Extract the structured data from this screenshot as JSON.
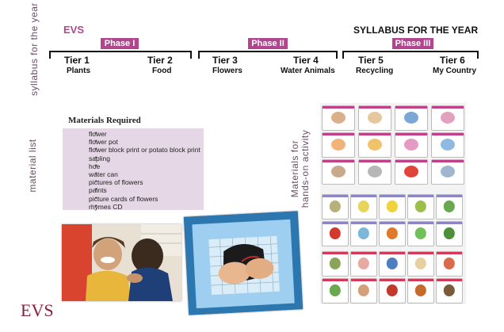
{
  "side_labels": {
    "syllabus": "syllabus for the year",
    "material": "material list",
    "hands_on": "Materials for\nhands-on activity"
  },
  "header": {
    "subject": "EVS",
    "title": "SYLLABUS FOR THE YEAR"
  },
  "phases": [
    "Phase I",
    "Phase II",
    "Phase III"
  ],
  "tiers": [
    {
      "name": "Tier 1",
      "topic": "Plants"
    },
    {
      "name": "Tier 2",
      "topic": "Food"
    },
    {
      "name": "Tier 3",
      "topic": "Flowers"
    },
    {
      "name": "Tier 4",
      "topic": "Water Animals"
    },
    {
      "name": "Tier 5",
      "topic": "Recycling"
    },
    {
      "name": "Tier 6",
      "topic": "My Country"
    }
  ],
  "materials": {
    "heading": "Materials Required",
    "items": [
      "flower",
      "flower pot",
      "flower block print or potato block print",
      "sapling",
      "hoe",
      "water can",
      "pictures of flowers",
      "paints",
      "picture cards of flowers",
      "rhymes CD"
    ]
  },
  "footer": {
    "label": "EVS"
  },
  "colors": {
    "accent": "#b0478e",
    "footer": "#8b1e3f",
    "materials_bg": "#e5d7e6"
  }
}
